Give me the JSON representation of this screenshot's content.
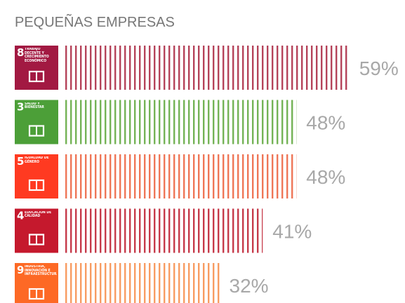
{
  "chart_data": {
    "type": "bar",
    "title": "PEQUEÑAS EMPRESAS",
    "sdg_numbers": [
      "8",
      "3",
      "5",
      "4",
      "9"
    ],
    "categories": [
      "TRABAJO DECENTE Y CRECIMIENTO ECONÓMICO",
      "SALUD Y BIENESTAR",
      "IGUALDAD DE GÉNERO",
      "EDUCACIÓN DE CALIDAD",
      "INDUSTRIA, INNOVACIÓN E INFRAESTRUCTURA"
    ],
    "values": [
      59,
      48,
      48,
      41,
      32
    ],
    "value_labels": [
      "59%",
      "48%",
      "48%",
      "41%",
      "32%"
    ],
    "colors": [
      "#b5435a",
      "#74b356",
      "#ef7657",
      "#c63a4a",
      "#f89c62"
    ],
    "icon_colors": [
      "#a21942",
      "#4c9f38",
      "#ff3a21",
      "#c5192d",
      "#fd6925"
    ]
  }
}
